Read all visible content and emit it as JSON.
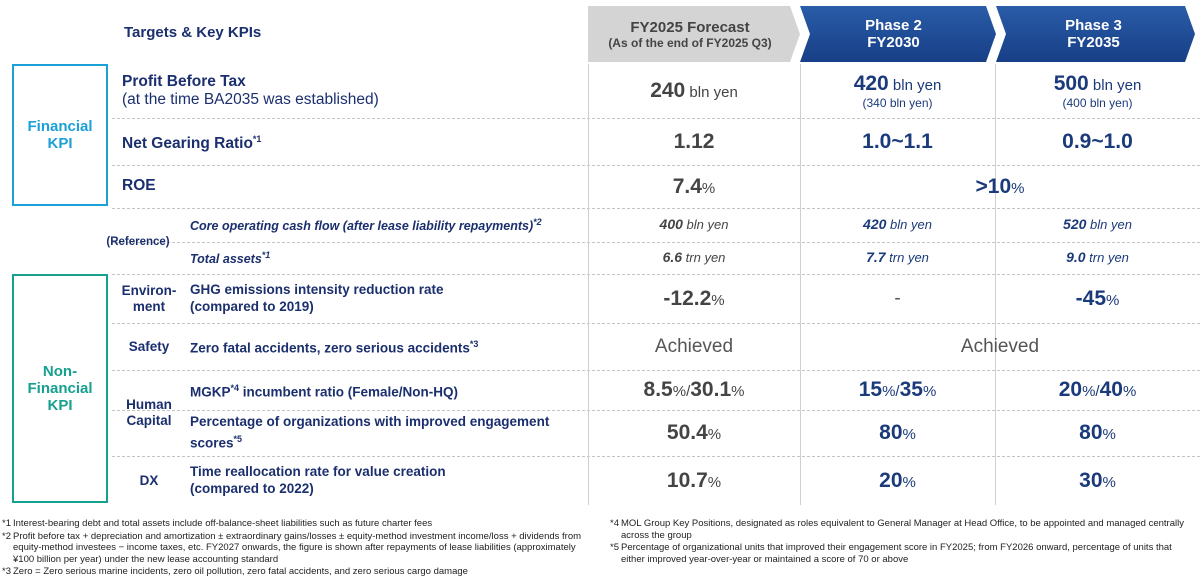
{
  "header": {
    "title": "Targets & Key KPIs",
    "columns": [
      {
        "line1": "FY2025 Forecast",
        "line2": "(As of the end of FY2025 Q3)"
      },
      {
        "line1": "Phase 2",
        "line2": "FY2030"
      },
      {
        "line1": "Phase 3",
        "line2": "FY2035"
      }
    ]
  },
  "groups": [
    {
      "lines": [
        "Financial",
        "KPI"
      ]
    },
    {
      "lines": [
        "(Reference)"
      ]
    },
    {
      "lines": [
        "Non-",
        "Financial",
        "KPI"
      ]
    }
  ],
  "categories": [
    {
      "lines": [
        "Environ-",
        "ment"
      ]
    },
    {
      "lines": [
        "Safety"
      ]
    },
    {
      "lines": [
        "Human",
        "Capital"
      ]
    },
    {
      "lines": [
        "DX"
      ]
    }
  ],
  "rows": [
    {
      "label": "Profit Before Tax",
      "label2": "(at the time BA2035 was established)",
      "cells": [
        {
          "parts": [
            "240",
            " bln yen"
          ]
        },
        {
          "parts": [
            "420",
            " bln yen"
          ],
          "sub": "(340 bln yen)"
        },
        {
          "parts": [
            "500",
            " bln yen"
          ],
          "sub": "(400 bln yen)"
        }
      ]
    },
    {
      "label": "Net Gearing Ratio",
      "note": "*1",
      "cells": [
        {
          "parts": [
            "1.12"
          ]
        },
        {
          "parts": [
            "1.0~1.1"
          ]
        },
        {
          "parts": [
            "0.9~1.0"
          ]
        }
      ]
    },
    {
      "label": "ROE",
      "cells": [
        {
          "parts": [
            "7.4",
            "%"
          ]
        },
        {
          "parts": [
            ">10",
            "%"
          ],
          "span": 2
        }
      ]
    },
    {
      "label": "Core operating cash flow (after lease liability repayments)",
      "note": "*2",
      "style": "reference",
      "cells": [
        {
          "parts": [
            "400",
            " bln yen"
          ]
        },
        {
          "parts": [
            "420",
            " bln yen"
          ]
        },
        {
          "parts": [
            "520",
            " bln yen"
          ]
        }
      ]
    },
    {
      "label": "Total assets",
      "note": "*1",
      "style": "reference",
      "cells": [
        {
          "parts": [
            "6.6",
            " trn yen"
          ]
        },
        {
          "parts": [
            "7.7",
            " trn yen"
          ]
        },
        {
          "parts": [
            "9.0",
            " trn yen"
          ]
        }
      ]
    },
    {
      "label": "GHG emissions intensity reduction rate",
      "label2": "(compared to 2019)",
      "cells": [
        {
          "parts": [
            "-12.2",
            "%"
          ]
        },
        {
          "parts": [
            "-"
          ],
          "plain": true
        },
        {
          "parts": [
            "-45",
            "%"
          ]
        }
      ]
    },
    {
      "label": "Zero fatal accidents, zero serious accidents",
      "note": "*3",
      "cells": [
        {
          "parts": [
            "Achieved"
          ],
          "plain": true
        },
        {
          "parts": [
            "Achieved"
          ],
          "plain": true,
          "span": 2
        }
      ]
    },
    {
      "label": "MGKP",
      "note": "*4",
      "label_after": " incumbent ratio (Female/Non-HQ)",
      "cells": [
        {
          "parts": [
            "8.5",
            "%/",
            "30.1",
            "%"
          ]
        },
        {
          "parts": [
            "15",
            "%/",
            "35",
            "%"
          ]
        },
        {
          "parts": [
            "20",
            "%/",
            "40",
            "%"
          ]
        }
      ]
    },
    {
      "label": "Percentage of organizations with improved engagement scores",
      "note": "*5",
      "cells": [
        {
          "parts": [
            "50.4",
            "%"
          ]
        },
        {
          "parts": [
            "80",
            "%"
          ]
        },
        {
          "parts": [
            "80",
            "%"
          ]
        }
      ]
    },
    {
      "label": "Time reallocation rate for value creation",
      "label2": "(compared to 2022)",
      "cells": [
        {
          "parts": [
            "10.7",
            "%"
          ]
        },
        {
          "parts": [
            "20",
            "%"
          ]
        },
        {
          "parts": [
            "30",
            "%"
          ]
        }
      ]
    }
  ],
  "footnotes": [
    {
      "mark": "*1",
      "text": "Interest-bearing debt and total assets include off-balance-sheet liabilities such as future charter fees"
    },
    {
      "mark": "*2",
      "text": "Profit before tax + depreciation and amortization ± extraordinary gains/losses ± equity-method investment income/loss + dividends from equity-method investees − income taxes, etc. FY2027 onwards, the figure is shown after repayments of lease liabilities (approximately ¥100 billion per year) under the new lease accounting standard"
    },
    {
      "mark": "*3",
      "text": "Zero = Zero serious marine incidents, zero oil pollution, zero fatal accidents, and zero serious cargo damage"
    },
    {
      "mark": "*4",
      "text": "MOL Group Key Positions, designated as roles equivalent to General Manager at Head Office, to be appointed and managed centrally across the group"
    },
    {
      "mark": "*5",
      "text": "Percentage of organizational units that improved their engagement score in FY2025; from FY2026 onward, percentage of units that either improved year-over-year or maintained a score of 70 or above"
    }
  ]
}
